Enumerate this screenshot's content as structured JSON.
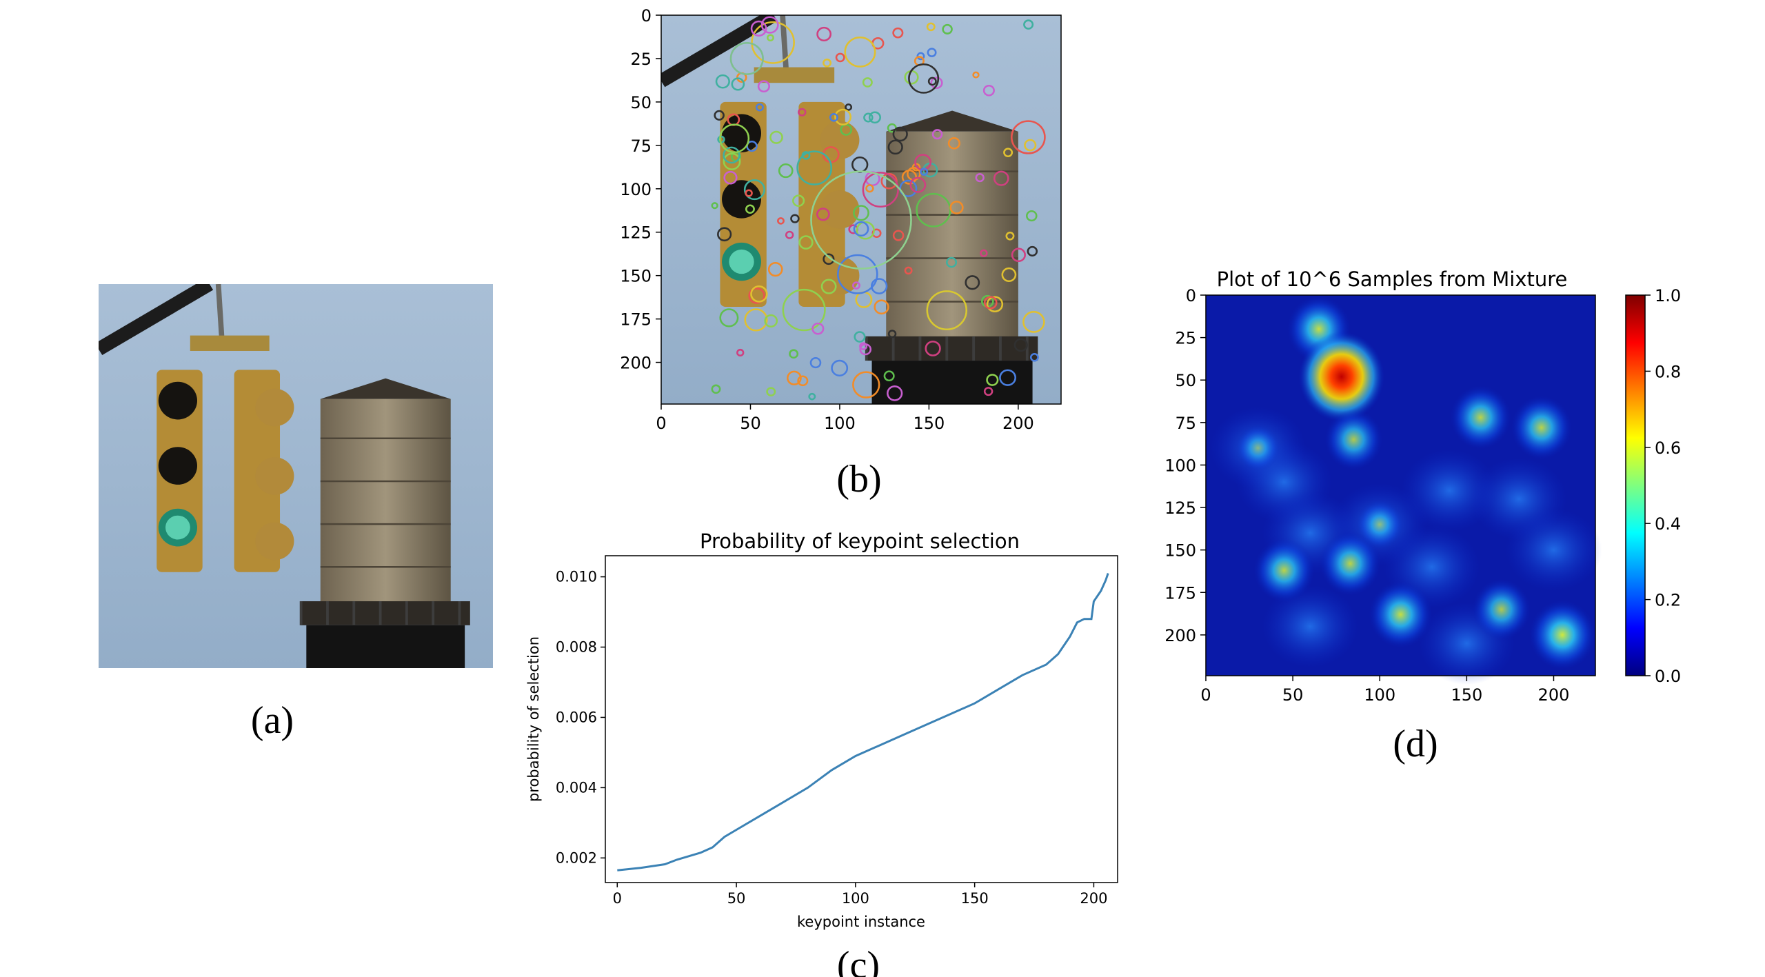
{
  "captions": {
    "a": "(a)",
    "b": "(b)",
    "c": "(c)",
    "d": "(d)"
  },
  "panel_b": {
    "x_ticks": [
      0,
      50,
      100,
      150,
      200
    ],
    "y_ticks": [
      0,
      25,
      50,
      75,
      100,
      125,
      150,
      175,
      200
    ],
    "xlim": [
      0,
      224
    ],
    "ylim": [
      224,
      0
    ]
  },
  "chart_data": [
    {
      "type": "line",
      "title": "Probability of keypoint selection",
      "xlabel": "keypoint instance",
      "ylabel": "probability of selection",
      "xlim": [
        -5,
        210
      ],
      "ylim": [
        0.0013,
        0.0106
      ],
      "x_ticks": [
        0,
        50,
        100,
        150,
        200
      ],
      "y_ticks": [
        "0.002",
        "0.004",
        "0.006",
        "0.008",
        "0.010"
      ],
      "y_tick_values": [
        0.002,
        0.004,
        0.006,
        0.008,
        0.01
      ],
      "color": "#3b82b5",
      "series": [
        {
          "x": [
            0,
            10,
            20,
            25,
            30,
            35,
            40,
            45,
            50,
            60,
            70,
            80,
            90,
            100,
            110,
            120,
            130,
            140,
            150,
            160,
            170,
            180,
            185,
            190,
            193,
            196,
            199,
            200,
            203,
            205,
            206
          ],
          "values": [
            0.00165,
            0.00172,
            0.00182,
            0.00195,
            0.00205,
            0.00215,
            0.0023,
            0.0026,
            0.0028,
            0.0032,
            0.0036,
            0.004,
            0.0045,
            0.0049,
            0.0052,
            0.0055,
            0.0058,
            0.0061,
            0.0064,
            0.0068,
            0.0072,
            0.0075,
            0.0078,
            0.0083,
            0.0087,
            0.0088,
            0.0088,
            0.0093,
            0.0096,
            0.0099,
            0.0101
          ]
        }
      ]
    },
    {
      "type": "heatmap",
      "title": "Plot of 10^6 Samples from Mixture",
      "xlim": [
        0,
        224
      ],
      "ylim": [
        224,
        0
      ],
      "x_ticks": [
        0,
        50,
        100,
        150,
        200
      ],
      "y_ticks": [
        0,
        25,
        50,
        75,
        100,
        125,
        150,
        175,
        200
      ],
      "colorbar": {
        "min": 0.0,
        "max": 1.0,
        "ticks": [
          "0.0",
          "0.2",
          "0.4",
          "0.6",
          "0.8",
          "1.0"
        ],
        "tick_values": [
          0.0,
          0.2,
          0.4,
          0.6,
          0.8,
          1.0
        ],
        "colormap": "jet"
      },
      "hotspots": [
        {
          "x": 65,
          "y": 20,
          "value": 0.55
        },
        {
          "x": 78,
          "y": 48,
          "value": 1.0
        },
        {
          "x": 85,
          "y": 85,
          "value": 0.45
        },
        {
          "x": 158,
          "y": 72,
          "value": 0.5
        },
        {
          "x": 193,
          "y": 78,
          "value": 0.5
        },
        {
          "x": 45,
          "y": 162,
          "value": 0.5
        },
        {
          "x": 83,
          "y": 158,
          "value": 0.5
        },
        {
          "x": 112,
          "y": 188,
          "value": 0.55
        },
        {
          "x": 170,
          "y": 185,
          "value": 0.45
        },
        {
          "x": 205,
          "y": 200,
          "value": 0.6
        },
        {
          "x": 100,
          "y": 135,
          "value": 0.25
        },
        {
          "x": 30,
          "y": 90,
          "value": 0.2
        }
      ]
    }
  ]
}
